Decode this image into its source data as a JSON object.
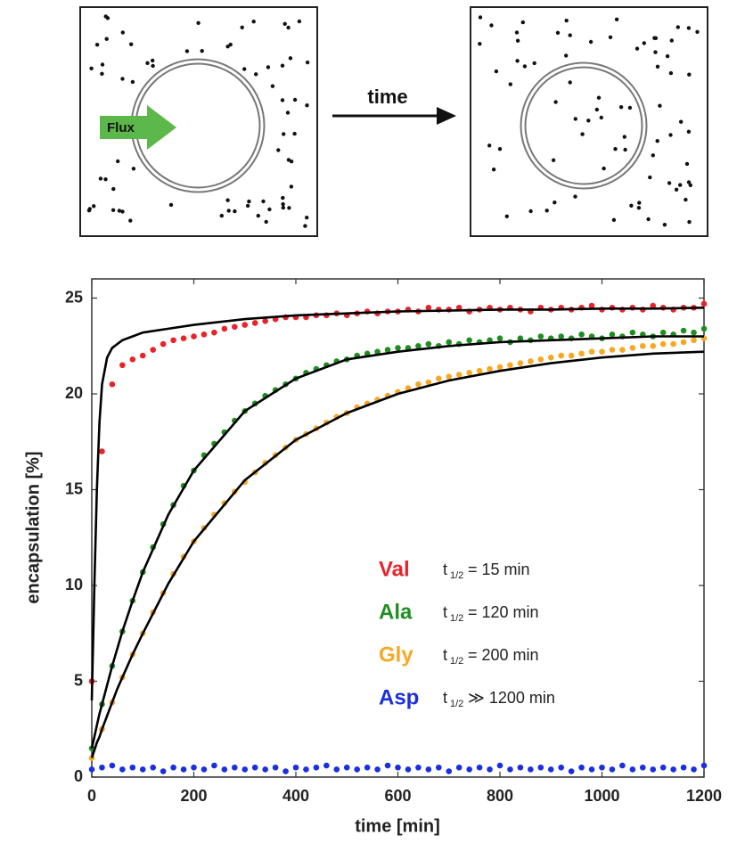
{
  "schematic": {
    "arrow_label": "time",
    "flux_label": "Flux"
  },
  "chart_data": {
    "type": "scatter",
    "xlabel": "time [min]",
    "ylabel": "encapsulation [%]",
    "xlim": [
      0,
      1200
    ],
    "ylim": [
      0,
      26
    ],
    "xticks": [
      0,
      200,
      400,
      600,
      800,
      1000,
      1200
    ],
    "yticks": [
      0,
      5,
      10,
      15,
      20,
      25
    ],
    "legend_symbol": "t",
    "legend_subscript": "1/2",
    "fit_color": "#000000",
    "x": [
      0,
      20,
      40,
      60,
      80,
      100,
      120,
      140,
      160,
      180,
      200,
      220,
      240,
      260,
      280,
      300,
      320,
      340,
      360,
      380,
      400,
      420,
      440,
      460,
      480,
      500,
      520,
      540,
      560,
      580,
      600,
      620,
      640,
      660,
      680,
      700,
      720,
      740,
      760,
      780,
      800,
      820,
      840,
      860,
      880,
      900,
      920,
      940,
      960,
      980,
      1000,
      1020,
      1040,
      1060,
      1080,
      1100,
      1120,
      1140,
      1160,
      1180,
      1200
    ],
    "fit_x": [
      0,
      5,
      10,
      15,
      20,
      30,
      40,
      50,
      60,
      80,
      100,
      150,
      200,
      300,
      400,
      500,
      600,
      700,
      800,
      900,
      1000,
      1100,
      1200
    ],
    "series": [
      {
        "name": "Val",
        "color": "#e8242a",
        "half_life": "= 15 min",
        "values": [
          5,
          17,
          20.5,
          21.5,
          21.8,
          22.0,
          22.3,
          22.6,
          22.8,
          22.9,
          23.0,
          23.1,
          23.2,
          23.4,
          23.5,
          23.6,
          23.7,
          23.8,
          23.9,
          24.0,
          24.0,
          24.0,
          24.1,
          24.1,
          24.2,
          24.1,
          24.2,
          24.3,
          24.2,
          24.3,
          24.3,
          24.4,
          24.3,
          24.5,
          24.4,
          24.4,
          24.5,
          24.3,
          24.4,
          24.5,
          24.4,
          24.5,
          24.4,
          24.3,
          24.5,
          24.4,
          24.5,
          24.4,
          24.5,
          24.6,
          24.4,
          24.5,
          24.4,
          24.5,
          24.4,
          24.6,
          24.5,
          24.4,
          24.5,
          24.5,
          24.7
        ],
        "fit": [
          4,
          10,
          15,
          18.5,
          20.5,
          21.9,
          22.4,
          22.6,
          22.8,
          23.0,
          23.2,
          23.4,
          23.6,
          23.9,
          24.1,
          24.2,
          24.3,
          24.35,
          24.4,
          24.4,
          24.45,
          24.45,
          24.5
        ]
      },
      {
        "name": "Ala",
        "color": "#1e8f1e",
        "half_life": "= 120 min",
        "values": [
          1.5,
          3.8,
          5.8,
          7.6,
          9.2,
          10.7,
          12.0,
          13.2,
          14.2,
          15.2,
          16.0,
          16.8,
          17.4,
          18.0,
          18.6,
          19.1,
          19.5,
          19.9,
          20.2,
          20.5,
          20.8,
          21.1,
          21.3,
          21.5,
          21.7,
          21.8,
          22.0,
          22.1,
          22.2,
          22.3,
          22.4,
          22.4,
          22.5,
          22.6,
          22.5,
          22.7,
          22.6,
          22.8,
          22.7,
          22.8,
          22.9,
          22.7,
          22.9,
          22.8,
          23.0,
          22.9,
          23.0,
          22.9,
          23.1,
          23.0,
          22.9,
          23.1,
          23.0,
          23.2,
          23.1,
          23.0,
          23.2,
          23.1,
          23.3,
          23.2,
          23.4
        ],
        "fit": [
          1.5,
          2.1,
          2.7,
          3.3,
          3.8,
          4.8,
          5.8,
          6.7,
          7.6,
          9.2,
          10.7,
          13.7,
          16.0,
          19.1,
          20.8,
          21.8,
          22.2,
          22.5,
          22.7,
          22.8,
          22.9,
          23.0,
          23.0
        ]
      },
      {
        "name": "Gly",
        "color": "#f7a823",
        "half_life": "= 200 min",
        "values": [
          1.0,
          2.5,
          3.9,
          5.2,
          6.4,
          7.5,
          8.6,
          9.6,
          10.6,
          11.5,
          12.3,
          13.0,
          13.7,
          14.3,
          14.9,
          15.4,
          15.9,
          16.4,
          16.8,
          17.2,
          17.6,
          17.9,
          18.2,
          18.5,
          18.8,
          19.0,
          19.3,
          19.5,
          19.7,
          19.9,
          20.1,
          20.3,
          20.5,
          20.6,
          20.8,
          20.9,
          21.0,
          21.1,
          21.2,
          21.3,
          21.4,
          21.5,
          21.6,
          21.7,
          21.8,
          21.9,
          22.0,
          22.0,
          22.1,
          22.2,
          22.2,
          22.3,
          22.3,
          22.4,
          22.5,
          22.5,
          22.6,
          22.6,
          22.7,
          22.8,
          22.9
        ],
        "fit": [
          1.0,
          1.4,
          1.8,
          2.1,
          2.5,
          3.2,
          3.9,
          4.6,
          5.2,
          6.4,
          7.5,
          10.1,
          12.3,
          15.5,
          17.6,
          19.0,
          20.0,
          20.7,
          21.2,
          21.6,
          21.9,
          22.1,
          22.2
        ]
      },
      {
        "name": "Asp",
        "color": "#1a2fe0",
        "half_life": "≫ 1200 min",
        "values": [
          0.4,
          0.5,
          0.6,
          0.4,
          0.5,
          0.4,
          0.5,
          0.3,
          0.5,
          0.4,
          0.5,
          0.4,
          0.6,
          0.4,
          0.5,
          0.4,
          0.5,
          0.4,
          0.5,
          0.3,
          0.5,
          0.4,
          0.5,
          0.6,
          0.4,
          0.5,
          0.4,
          0.5,
          0.4,
          0.6,
          0.5,
          0.4,
          0.5,
          0.4,
          0.5,
          0.3,
          0.5,
          0.4,
          0.5,
          0.4,
          0.6,
          0.4,
          0.5,
          0.4,
          0.5,
          0.4,
          0.5,
          0.3,
          0.5,
          0.4,
          0.5,
          0.4,
          0.6,
          0.4,
          0.5,
          0.4,
          0.5,
          0.4,
          0.5,
          0.4,
          0.6
        ]
      }
    ]
  }
}
